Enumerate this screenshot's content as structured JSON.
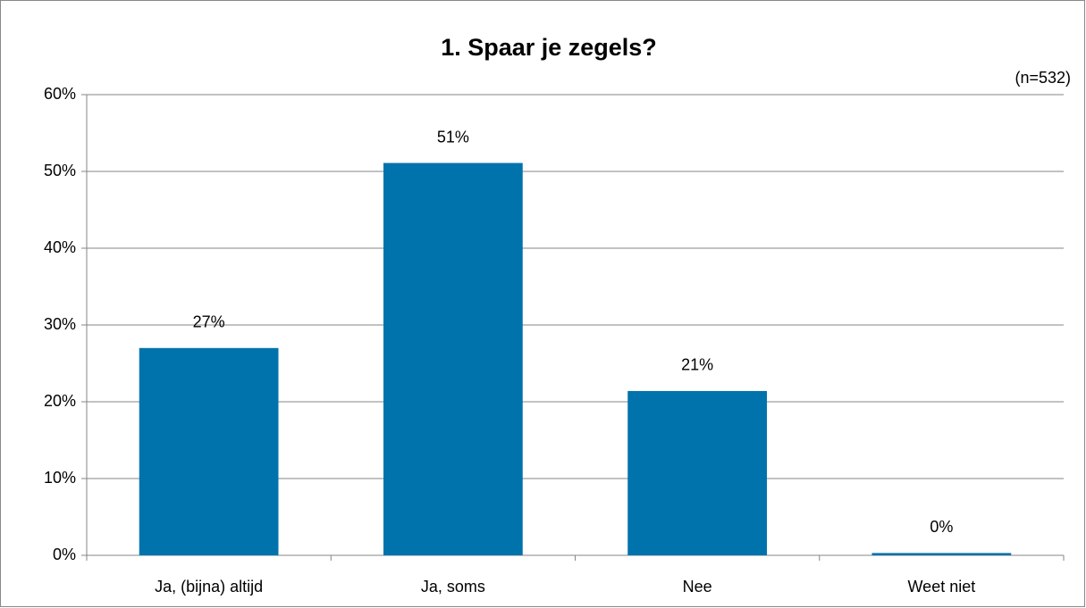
{
  "chart_data": {
    "type": "bar",
    "title": "1. Spaar je zegels?",
    "subtitle": "(n=532)",
    "categories": [
      "Ja, (bijna) altijd",
      "Ja, soms",
      "Nee",
      "Weet niet"
    ],
    "values": [
      27.0,
      51.1,
      21.4,
      0.3
    ],
    "value_labels": [
      "27%",
      "51%",
      "21%",
      "0%"
    ],
    "color": "#0073ad",
    "ylim": [
      0,
      60
    ],
    "yticks": [
      {
        "value": 0,
        "label": "0%"
      },
      {
        "value": 10,
        "label": "10%"
      },
      {
        "value": 20,
        "label": "20%"
      },
      {
        "value": 30,
        "label": "30%"
      },
      {
        "value": 40,
        "label": "40%"
      },
      {
        "value": 50,
        "label": "50%"
      },
      {
        "value": 60,
        "label": "60%"
      }
    ],
    "grid": true
  }
}
